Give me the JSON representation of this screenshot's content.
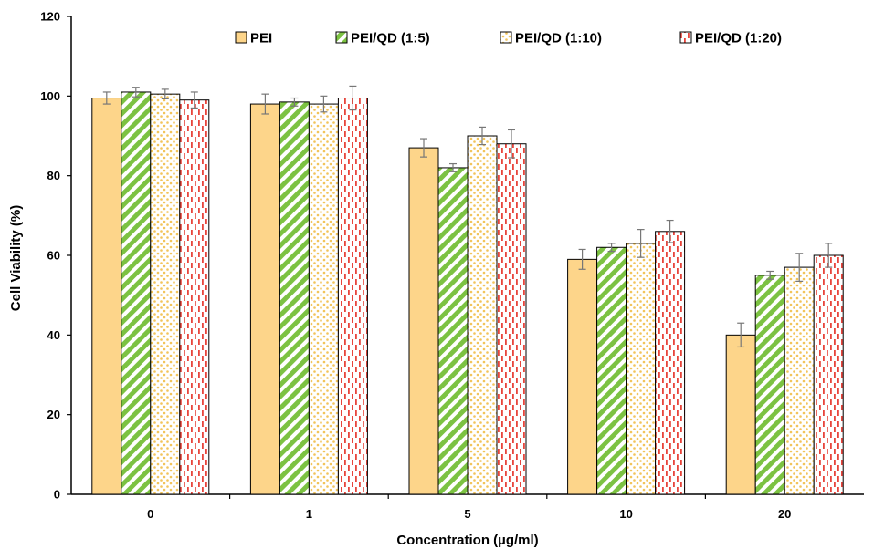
{
  "chart_data": {
    "type": "bar",
    "title": "",
    "xlabel": "Concentration (µg/ml)",
    "ylabel": "Cell Viability (%)",
    "categories": [
      "0",
      "1",
      "5",
      "10",
      "20"
    ],
    "ylim": [
      0,
      120
    ],
    "yticks": [
      0,
      20,
      40,
      60,
      80,
      100,
      120
    ],
    "grid": false,
    "legend_position": "top",
    "series": [
      {
        "name": "PEI",
        "values": [
          99.5,
          98,
          87,
          59,
          40
        ],
        "errors": [
          1.5,
          2.5,
          2.3,
          2.5,
          3
        ],
        "color": "#fdd58a",
        "pattern": "solid"
      },
      {
        "name": "PEI/QD (1:5)",
        "values": [
          101,
          98.5,
          82,
          62,
          55
        ],
        "errors": [
          1.2,
          1,
          1,
          1,
          1
        ],
        "color": "#7cc242",
        "pattern": "diagonal-stripes"
      },
      {
        "name": "PEI/QD (1:10)",
        "values": [
          100.5,
          98,
          90,
          63,
          57
        ],
        "errors": [
          1.2,
          2,
          2.2,
          3.5,
          3.5
        ],
        "color": "#f2c45a",
        "pattern": "dots"
      },
      {
        "name": "PEI/QD (1:20)",
        "values": [
          99,
          99.5,
          88,
          66,
          60
        ],
        "errors": [
          2,
          3,
          3.5,
          2.8,
          3
        ],
        "color": "#e8453c",
        "pattern": "dashes"
      }
    ]
  }
}
